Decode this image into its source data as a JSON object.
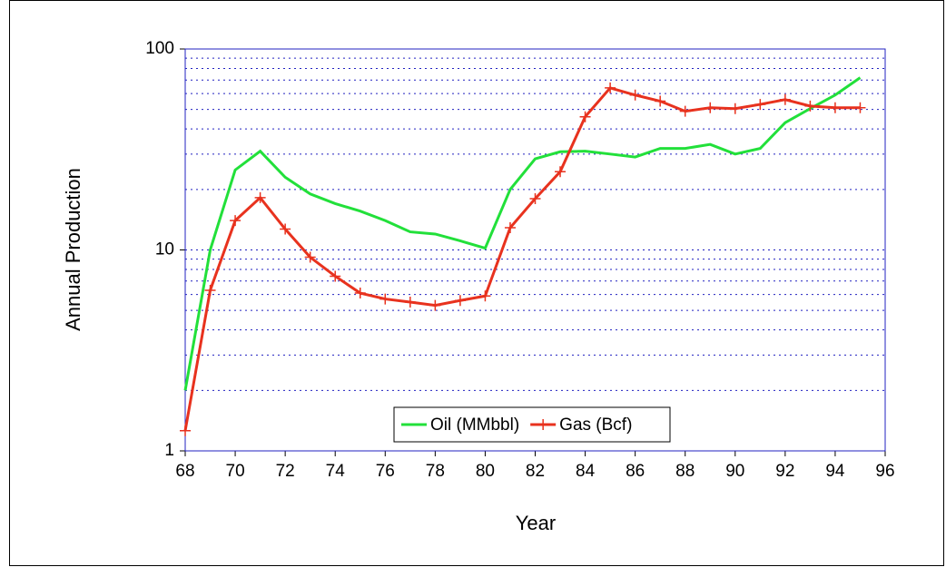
{
  "chart_data": {
    "type": "line",
    "x_label": "Year",
    "y_label": "Annual Production",
    "x": [
      68,
      69,
      70,
      71,
      72,
      73,
      74,
      75,
      76,
      77,
      78,
      79,
      80,
      81,
      82,
      83,
      84,
      85,
      86,
      87,
      88,
      89,
      90,
      91,
      92,
      93,
      94,
      95
    ],
    "series": [
      {
        "name": "Oil (MMbbl)",
        "color": "#22e03a",
        "marker": "none",
        "values": [
          2,
          10,
          25,
          31,
          23,
          19,
          17,
          15.6,
          14,
          12.3,
          12,
          11.1,
          10.2,
          20,
          28.4,
          30.8,
          31,
          30,
          29,
          32,
          32,
          33.5,
          30,
          32,
          43,
          50.5,
          59,
          72
        ]
      },
      {
        "name": "Gas (Bcf)",
        "color": "#e8321e",
        "marker": "plus",
        "values": [
          1.26,
          6.3,
          14,
          18.2,
          12.7,
          9.2,
          7.4,
          6.1,
          5.7,
          5.5,
          5.3,
          5.6,
          5.9,
          12.9,
          18,
          24.5,
          46,
          64,
          59,
          55,
          49,
          51,
          50.5,
          53,
          56,
          52,
          51,
          51
        ]
      }
    ],
    "xlim": [
      68,
      96
    ],
    "xticks": [
      68,
      70,
      72,
      74,
      76,
      78,
      80,
      82,
      84,
      86,
      88,
      90,
      92,
      94,
      96
    ],
    "ylim": [
      1,
      100
    ],
    "yticks": [
      1,
      10,
      100
    ],
    "y_log": true,
    "y_minor_grid": [
      2,
      3,
      4,
      5,
      6,
      7,
      8,
      9,
      20,
      30,
      40,
      50,
      60,
      70,
      80,
      90
    ],
    "grid": true,
    "legend": "bottom"
  }
}
